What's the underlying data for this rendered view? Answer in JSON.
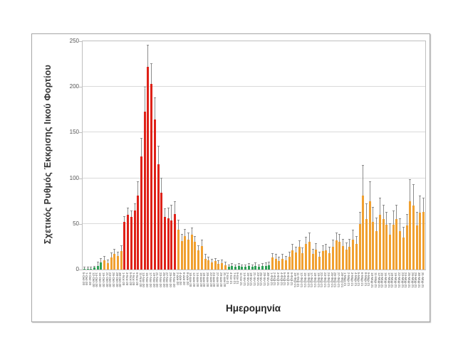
{
  "figure": {
    "background_color": "#ffffff",
    "frame_border_color": "#a6a6a6",
    "plot_border_color": "#bfbfbf",
    "gridline_color": "#d9d9d9",
    "error_bar_color": "#8c8c8c"
  },
  "chart_data": {
    "type": "bar",
    "title": "",
    "xlabel": "Ημερομηνία",
    "ylabel": "Σχετικός Ρυθμός Έκκρισης Ιικού Φορτίου",
    "ylim": [
      0,
      250
    ],
    "yticks": [
      0,
      50,
      100,
      150,
      200,
      250
    ],
    "grid": "horizontal",
    "legend_position": "none",
    "error_bars": "upper-whisker-with-cap",
    "colors": {
      "low": "#2ea055",
      "mid": "#f0a030",
      "high": "#df2118"
    },
    "bar_format": [
      "date_label",
      "value",
      "error_upper",
      "color_level"
    ],
    "bars": [
      [
        "5-Οκτ-20",
        1,
        2,
        "low"
      ],
      [
        "7-Οκτ-20",
        1,
        2,
        "low"
      ],
      [
        "9-Οκτ-20",
        1,
        2,
        "low"
      ],
      [
        "12-Οκτ-20",
        2,
        3,
        "low"
      ],
      [
        "14-Οκτ-20",
        4,
        8,
        "low"
      ],
      [
        "16-Οκτ-20",
        8,
        12,
        "low"
      ],
      [
        "19-Οκτ-20",
        10,
        14,
        "mid"
      ],
      [
        "21-Οκτ-20",
        7,
        10,
        "mid"
      ],
      [
        "23-Οκτ-20",
        13,
        18,
        "mid"
      ],
      [
        "26-Οκτ-20",
        17,
        22,
        "mid"
      ],
      [
        "28-Οκτ-20",
        15,
        19,
        "mid"
      ],
      [
        "30-Οκτ-20",
        20,
        26,
        "mid"
      ],
      [
        "1-Νοε-20",
        52,
        58,
        "high"
      ],
      [
        "3-Νοε-20",
        60,
        67,
        "high"
      ],
      [
        "5-Νοε-20",
        58,
        64,
        "high"
      ],
      [
        "7-Νοε-20",
        65,
        72,
        "high"
      ],
      [
        "9-Νοε-20",
        81,
        96,
        "high"
      ],
      [
        "11-Νοε-20",
        124,
        143,
        "high"
      ],
      [
        "13-Νοε-20",
        173,
        199,
        "high"
      ],
      [
        "15-Νοε-20",
        222,
        245,
        "high"
      ],
      [
        "17-Νοε-20",
        203,
        225,
        "high"
      ],
      [
        "19-Νοε-20",
        164,
        188,
        "high"
      ],
      [
        "21-Νοε-20",
        115,
        135,
        "high"
      ],
      [
        "23-Νοε-20",
        84,
        100,
        "high"
      ],
      [
        "25-Νοε-20",
        58,
        66,
        "high"
      ],
      [
        "27-Νοε-20",
        56,
        67,
        "high"
      ],
      [
        "29-Νοε-20",
        54,
        70,
        "high"
      ],
      [
        "30-Νοε-20",
        61,
        74,
        "high"
      ],
      [
        "2-Δεκ-20",
        44,
        54,
        "mid"
      ],
      [
        "4-Δεκ-20",
        31,
        38,
        "mid"
      ],
      [
        "6-Δεκ-20",
        37,
        44,
        "mid"
      ],
      [
        "8-Δεκ-20",
        33,
        40,
        "mid"
      ],
      [
        "10-Δεκ-20",
        38,
        45,
        "mid"
      ],
      [
        "12-Δεκ-20",
        30,
        36,
        "mid"
      ],
      [
        "14-Δεκ-20",
        21,
        26,
        "mid"
      ],
      [
        "16-Δεκ-20",
        26,
        32,
        "mid"
      ],
      [
        "18-Δεκ-20",
        12,
        16,
        "mid"
      ],
      [
        "20-Δεκ-20",
        10,
        13,
        "mid"
      ],
      [
        "22-Δεκ-20",
        8,
        11,
        "mid"
      ],
      [
        "24-Δεκ-20",
        9,
        12,
        "mid"
      ],
      [
        "27-Δεκ-20",
        6,
        9,
        "mid"
      ],
      [
        "29-Δεκ-20",
        7,
        10,
        "mid"
      ],
      [
        "31-Δεκ-20",
        5,
        8,
        "mid"
      ],
      [
        "2-Ιαν-21",
        3,
        5,
        "low"
      ],
      [
        "4-Ιαν-21",
        4,
        6,
        "low"
      ],
      [
        "7-Ιαν-21",
        3,
        5,
        "low"
      ],
      [
        "9-Ιαν-21",
        4,
        6,
        "low"
      ],
      [
        "11-Ιαν-21",
        3,
        5,
        "low"
      ],
      [
        "14-Ιαν-21",
        3,
        5,
        "low"
      ],
      [
        "16-Ιαν-21",
        4,
        6,
        "low"
      ],
      [
        "18-Ιαν-21",
        3,
        5,
        "low"
      ],
      [
        "21-Ιαν-21",
        4,
        7,
        "low"
      ],
      [
        "23-Ιαν-21",
        3,
        5,
        "low"
      ],
      [
        "25-Ιαν-21",
        4,
        6,
        "low"
      ],
      [
        "28-Ιαν-21",
        4,
        7,
        "low"
      ],
      [
        "30-Ιαν-21",
        5,
        8,
        "low"
      ],
      [
        "1-Φεβ-21",
        13,
        17,
        "mid"
      ],
      [
        "2-Φεβ-21",
        12,
        16,
        "mid"
      ],
      [
        "3-Φεβ-21",
        9,
        13,
        "mid"
      ],
      [
        "4-Φεβ-21",
        12,
        16,
        "mid"
      ],
      [
        "5-Φεβ-21",
        10,
        14,
        "mid"
      ],
      [
        "8-Φεβ-21",
        14,
        19,
        "mid"
      ],
      [
        "9-Φεβ-21",
        21,
        27,
        "mid"
      ],
      [
        "10-Φεβ-21",
        19,
        24,
        "mid"
      ],
      [
        "11-Φεβ-21",
        25,
        31,
        "mid"
      ],
      [
        "12-Φεβ-21",
        18,
        23,
        "mid"
      ],
      [
        "15-Φεβ-21",
        28,
        35,
        "mid"
      ],
      [
        "16-Φεβ-21",
        30,
        40,
        "mid"
      ],
      [
        "17-Φεβ-21",
        17,
        22,
        "mid"
      ],
      [
        "18-Φεβ-21",
        22,
        28,
        "mid"
      ],
      [
        "19-Φεβ-21",
        14,
        19,
        "mid"
      ],
      [
        "22-Φεβ-21",
        20,
        26,
        "mid"
      ],
      [
        "23-Φεβ-21",
        21,
        27,
        "mid"
      ],
      [
        "24-Φεβ-21",
        18,
        24,
        "mid"
      ],
      [
        "25-Φεβ-21",
        25,
        32,
        "mid"
      ],
      [
        "26-Φεβ-21",
        32,
        40,
        "mid"
      ],
      [
        "27-Φεβ-21",
        30,
        38,
        "mid"
      ],
      [
        "28-Φεβ-21",
        26,
        33,
        "mid"
      ],
      [
        "1-Μαρ-21",
        22,
        29,
        "mid"
      ],
      [
        "2-Μαρ-21",
        25,
        33,
        "mid"
      ],
      [
        "3-Μαρ-21",
        33,
        43,
        "mid"
      ],
      [
        "4-Μαρ-21",
        28,
        36,
        "mid"
      ],
      [
        "5-Μαρ-21",
        50,
        62,
        "mid"
      ],
      [
        "6-Μαρ-21",
        81,
        114,
        "mid"
      ],
      [
        "8-Μαρ-21",
        55,
        72,
        "mid"
      ],
      [
        "9-Μαρ-21",
        75,
        96,
        "mid"
      ],
      [
        "10-Μαρ-21",
        52,
        68,
        "mid"
      ],
      [
        "11-Μαρ-21",
        42,
        56,
        "mid"
      ],
      [
        "12-Μαρ-21",
        60,
        78,
        "mid"
      ],
      [
        "15-Μαρ-21",
        55,
        70,
        "mid"
      ],
      [
        "16-Μαρ-21",
        49,
        62,
        "mid"
      ],
      [
        "17-Μαρ-21",
        38,
        50,
        "mid"
      ],
      [
        "18-Μαρ-21",
        49,
        64,
        "mid"
      ],
      [
        "19-Μαρ-21",
        55,
        70,
        "mid"
      ],
      [
        "22-Μαρ-21",
        42,
        55,
        "mid"
      ],
      [
        "23-Μαρ-21",
        35,
        46,
        "mid"
      ],
      [
        "24-Μαρ-21",
        48,
        60,
        "mid"
      ],
      [
        "25-Μαρ-21",
        75,
        98,
        "mid"
      ],
      [
        "26-Μαρ-21",
        70,
        93,
        "mid"
      ],
      [
        "29-Μαρ-21",
        48,
        62,
        "mid"
      ],
      [
        "30-Μαρ-21",
        62,
        80,
        "mid"
      ],
      [
        "31-Μαρ-21",
        63,
        78,
        "mid"
      ]
    ]
  }
}
